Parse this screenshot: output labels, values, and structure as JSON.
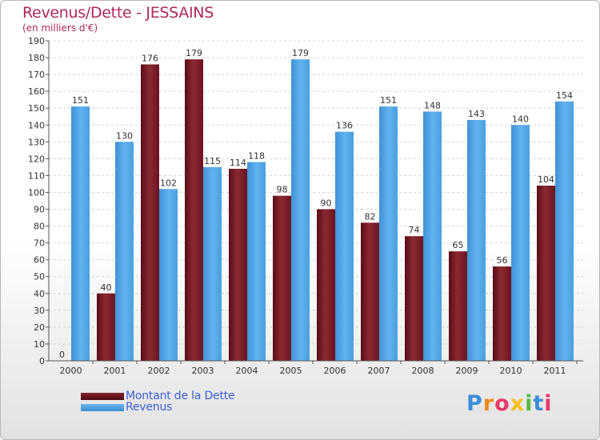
{
  "header": {
    "title": "Revenus/Dette - JESSAINS",
    "subtitle": "(en milliers d'€)"
  },
  "colors": {
    "dette": "#6b1420",
    "revenus": "#4fa3e6",
    "title": "#b0285a",
    "legend_text": "#3f5fd8"
  },
  "chart_data": {
    "type": "bar",
    "title": "Revenus/Dette - JESSAINS",
    "ylabel": "(en milliers d'€)",
    "ylim": [
      0,
      190
    ],
    "yticks": [
      0,
      10,
      20,
      30,
      40,
      50,
      60,
      70,
      80,
      90,
      100,
      110,
      120,
      130,
      140,
      150,
      160,
      170,
      180,
      190
    ],
    "grid": true,
    "categories": [
      "2000",
      "2001",
      "2002",
      "2003",
      "2004",
      "2005",
      "2006",
      "2007",
      "2008",
      "2009",
      "2010",
      "2011"
    ],
    "series": [
      {
        "name": "Montant de la Dette",
        "values": [
          0,
          40,
          176,
          179,
          114,
          98,
          90,
          82,
          74,
          65,
          56,
          104
        ]
      },
      {
        "name": "Revenus",
        "values": [
          151,
          130,
          102,
          115,
          118,
          179,
          136,
          151,
          148,
          143,
          140,
          154
        ]
      }
    ],
    "legend": "bottom-left"
  },
  "logo": {
    "letters": [
      "P",
      "r",
      "o",
      "x",
      "i",
      "t",
      "i"
    ],
    "colors": [
      "#3b8ed8",
      "#f08a1c",
      "#e83a6a",
      "#f5c01a",
      "#52b848",
      "#3b8ed8",
      "#e83a6a"
    ]
  }
}
